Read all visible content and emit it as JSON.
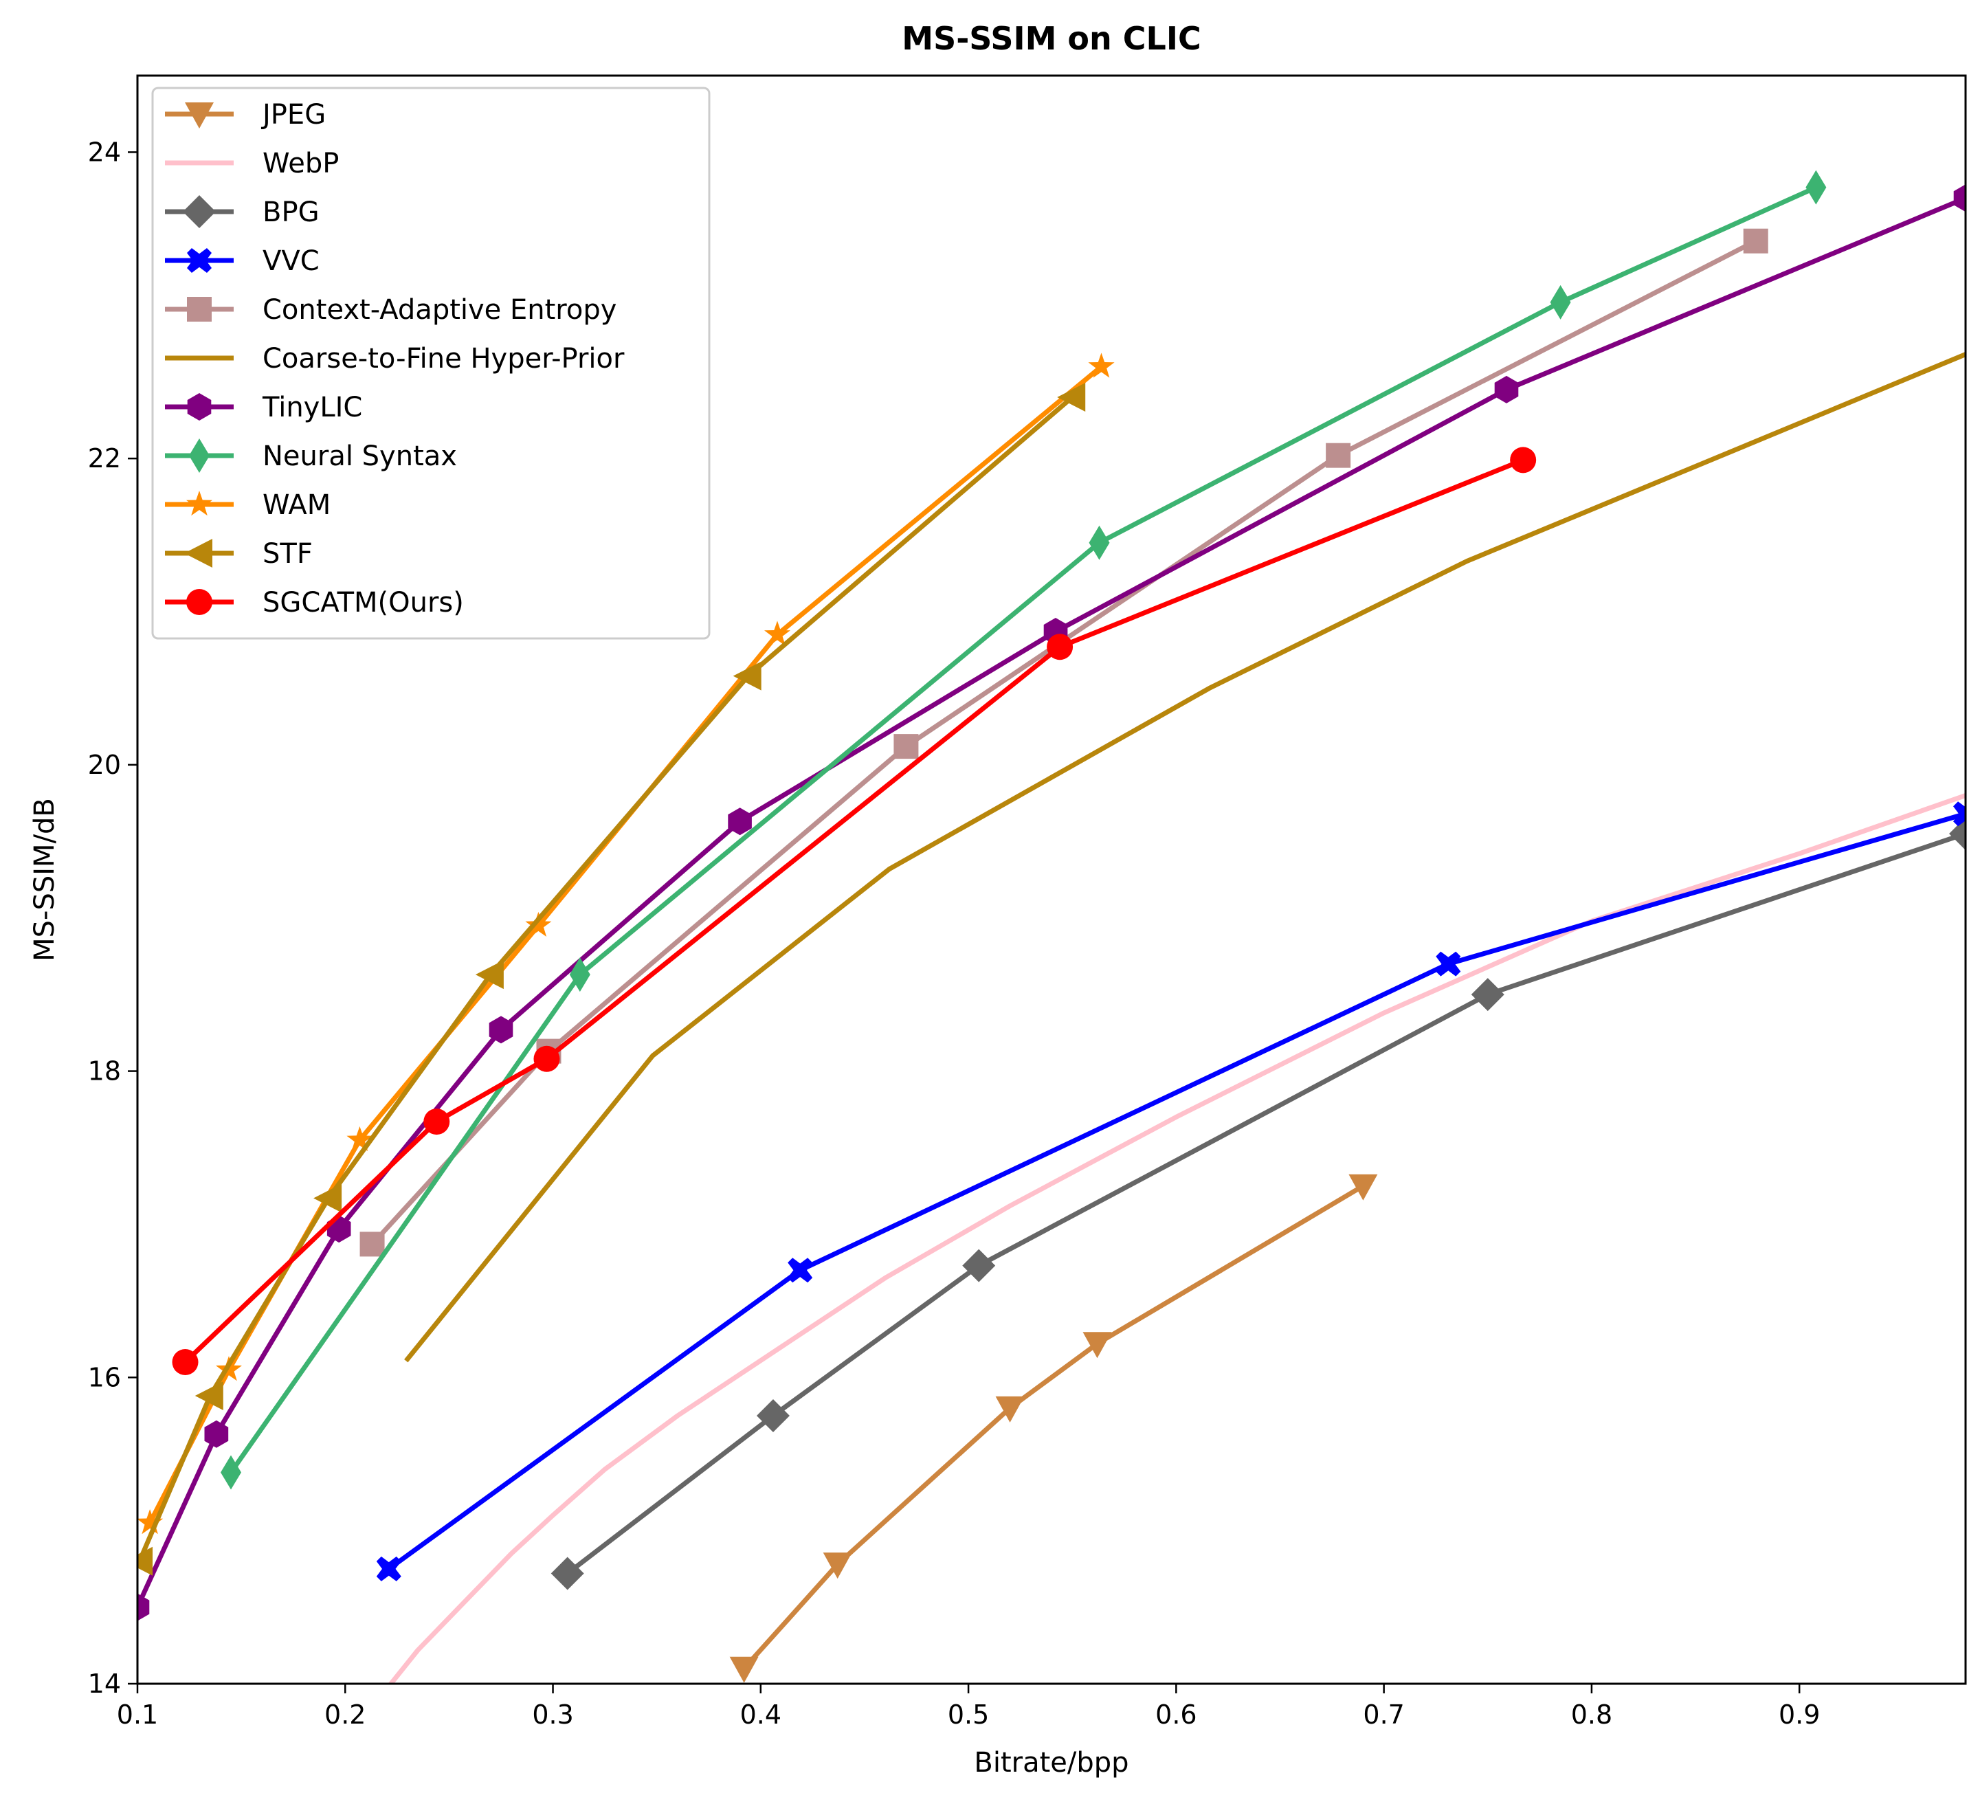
{
  "chart_data": {
    "type": "line",
    "title": "MS-SSIM on CLIC",
    "xlabel": "Bitrate/bpp",
    "ylabel": "MS-SSIM/dB",
    "xlim": [
      0.1,
      0.98
    ],
    "ylim": [
      14,
      24.5
    ],
    "xticks": [
      0.1,
      0.2,
      0.3,
      0.4,
      0.5,
      0.6,
      0.7,
      0.8,
      0.9
    ],
    "yticks": [
      14,
      16,
      18,
      20,
      22,
      24
    ],
    "grid": false,
    "legend_position": "top-left",
    "series": [
      {
        "name": "JPEG",
        "color": "#cd853f",
        "marker": "triangle-down",
        "x": [
          0.392,
          0.437,
          0.52,
          0.562,
          0.69
        ],
        "y": [
          14.1,
          14.78,
          15.8,
          16.22,
          17.25
        ]
      },
      {
        "name": "WebP",
        "color": "#ffc0cb",
        "marker": "none",
        "x": [
          0.222,
          0.235,
          0.255,
          0.28,
          0.3,
          0.325,
          0.36,
          0.41,
          0.46,
          0.52,
          0.6,
          0.7,
          0.8,
          0.9,
          0.98
        ],
        "y": [
          14.0,
          14.22,
          14.5,
          14.85,
          15.1,
          15.4,
          15.75,
          16.2,
          16.65,
          17.12,
          17.7,
          18.38,
          18.98,
          19.42,
          19.8
        ]
      },
      {
        "name": "BPG",
        "color": "#666666",
        "marker": "diamond",
        "x": [
          0.307,
          0.406,
          0.505,
          0.75,
          0.98
        ],
        "y": [
          14.72,
          15.75,
          16.73,
          18.5,
          19.55
        ]
      },
      {
        "name": "VVC",
        "color": "#0000ff",
        "marker": "x",
        "x": [
          0.221,
          0.419,
          0.731,
          0.98
        ],
        "y": [
          14.75,
          16.7,
          18.7,
          19.68
        ]
      },
      {
        "name": "Context-Adaptive Entropy",
        "color": "#bc8f8f",
        "marker": "square",
        "x": [
          0.213,
          0.298,
          0.47,
          0.678,
          0.879
        ],
        "y": [
          16.87,
          18.13,
          20.12,
          22.02,
          23.42
        ]
      },
      {
        "name": "Coarse-to-Fine Hyper-Prior",
        "color": "#b8860b",
        "marker": "none",
        "x": [
          0.23,
          0.348,
          0.462,
          0.616,
          0.74,
          0.98
        ],
        "y": [
          16.12,
          18.1,
          19.32,
          20.5,
          21.33,
          22.68
        ]
      },
      {
        "name": "TinyLIC",
        "color": "#800080",
        "marker": "hexagon",
        "x": [
          0.1,
          0.138,
          0.197,
          0.275,
          0.39,
          0.542,
          0.759,
          0.98
        ],
        "y": [
          14.5,
          15.63,
          16.97,
          18.27,
          19.63,
          20.87,
          22.45,
          23.7
        ]
      },
      {
        "name": "Neural Syntax",
        "color": "#3cb371",
        "marker": "thin-diamond",
        "x": [
          0.145,
          0.313,
          0.563,
          0.785,
          0.908
        ],
        "y": [
          15.38,
          18.63,
          21.45,
          23.02,
          23.77
        ]
      },
      {
        "name": "WAM",
        "color": "#ff8c00",
        "marker": "star",
        "x": [
          0.106,
          0.144,
          0.207,
          0.293,
          0.408,
          0.564
        ],
        "y": [
          15.05,
          16.05,
          17.55,
          18.95,
          20.85,
          22.6
        ]
      },
      {
        "name": "STF",
        "color": "#b8860b",
        "marker": "triangle-left",
        "x": [
          0.101,
          0.135,
          0.192,
          0.27,
          0.394,
          0.55
        ],
        "y": [
          14.8,
          15.88,
          17.17,
          18.63,
          20.58,
          22.4
        ]
      },
      {
        "name": "SGCATM(Ours)",
        "color": "#ff0000",
        "marker": "circle",
        "x": [
          0.123,
          0.244,
          0.297,
          0.544,
          0.767
        ],
        "y": [
          16.1,
          17.67,
          18.08,
          20.77,
          21.99
        ]
      }
    ]
  }
}
